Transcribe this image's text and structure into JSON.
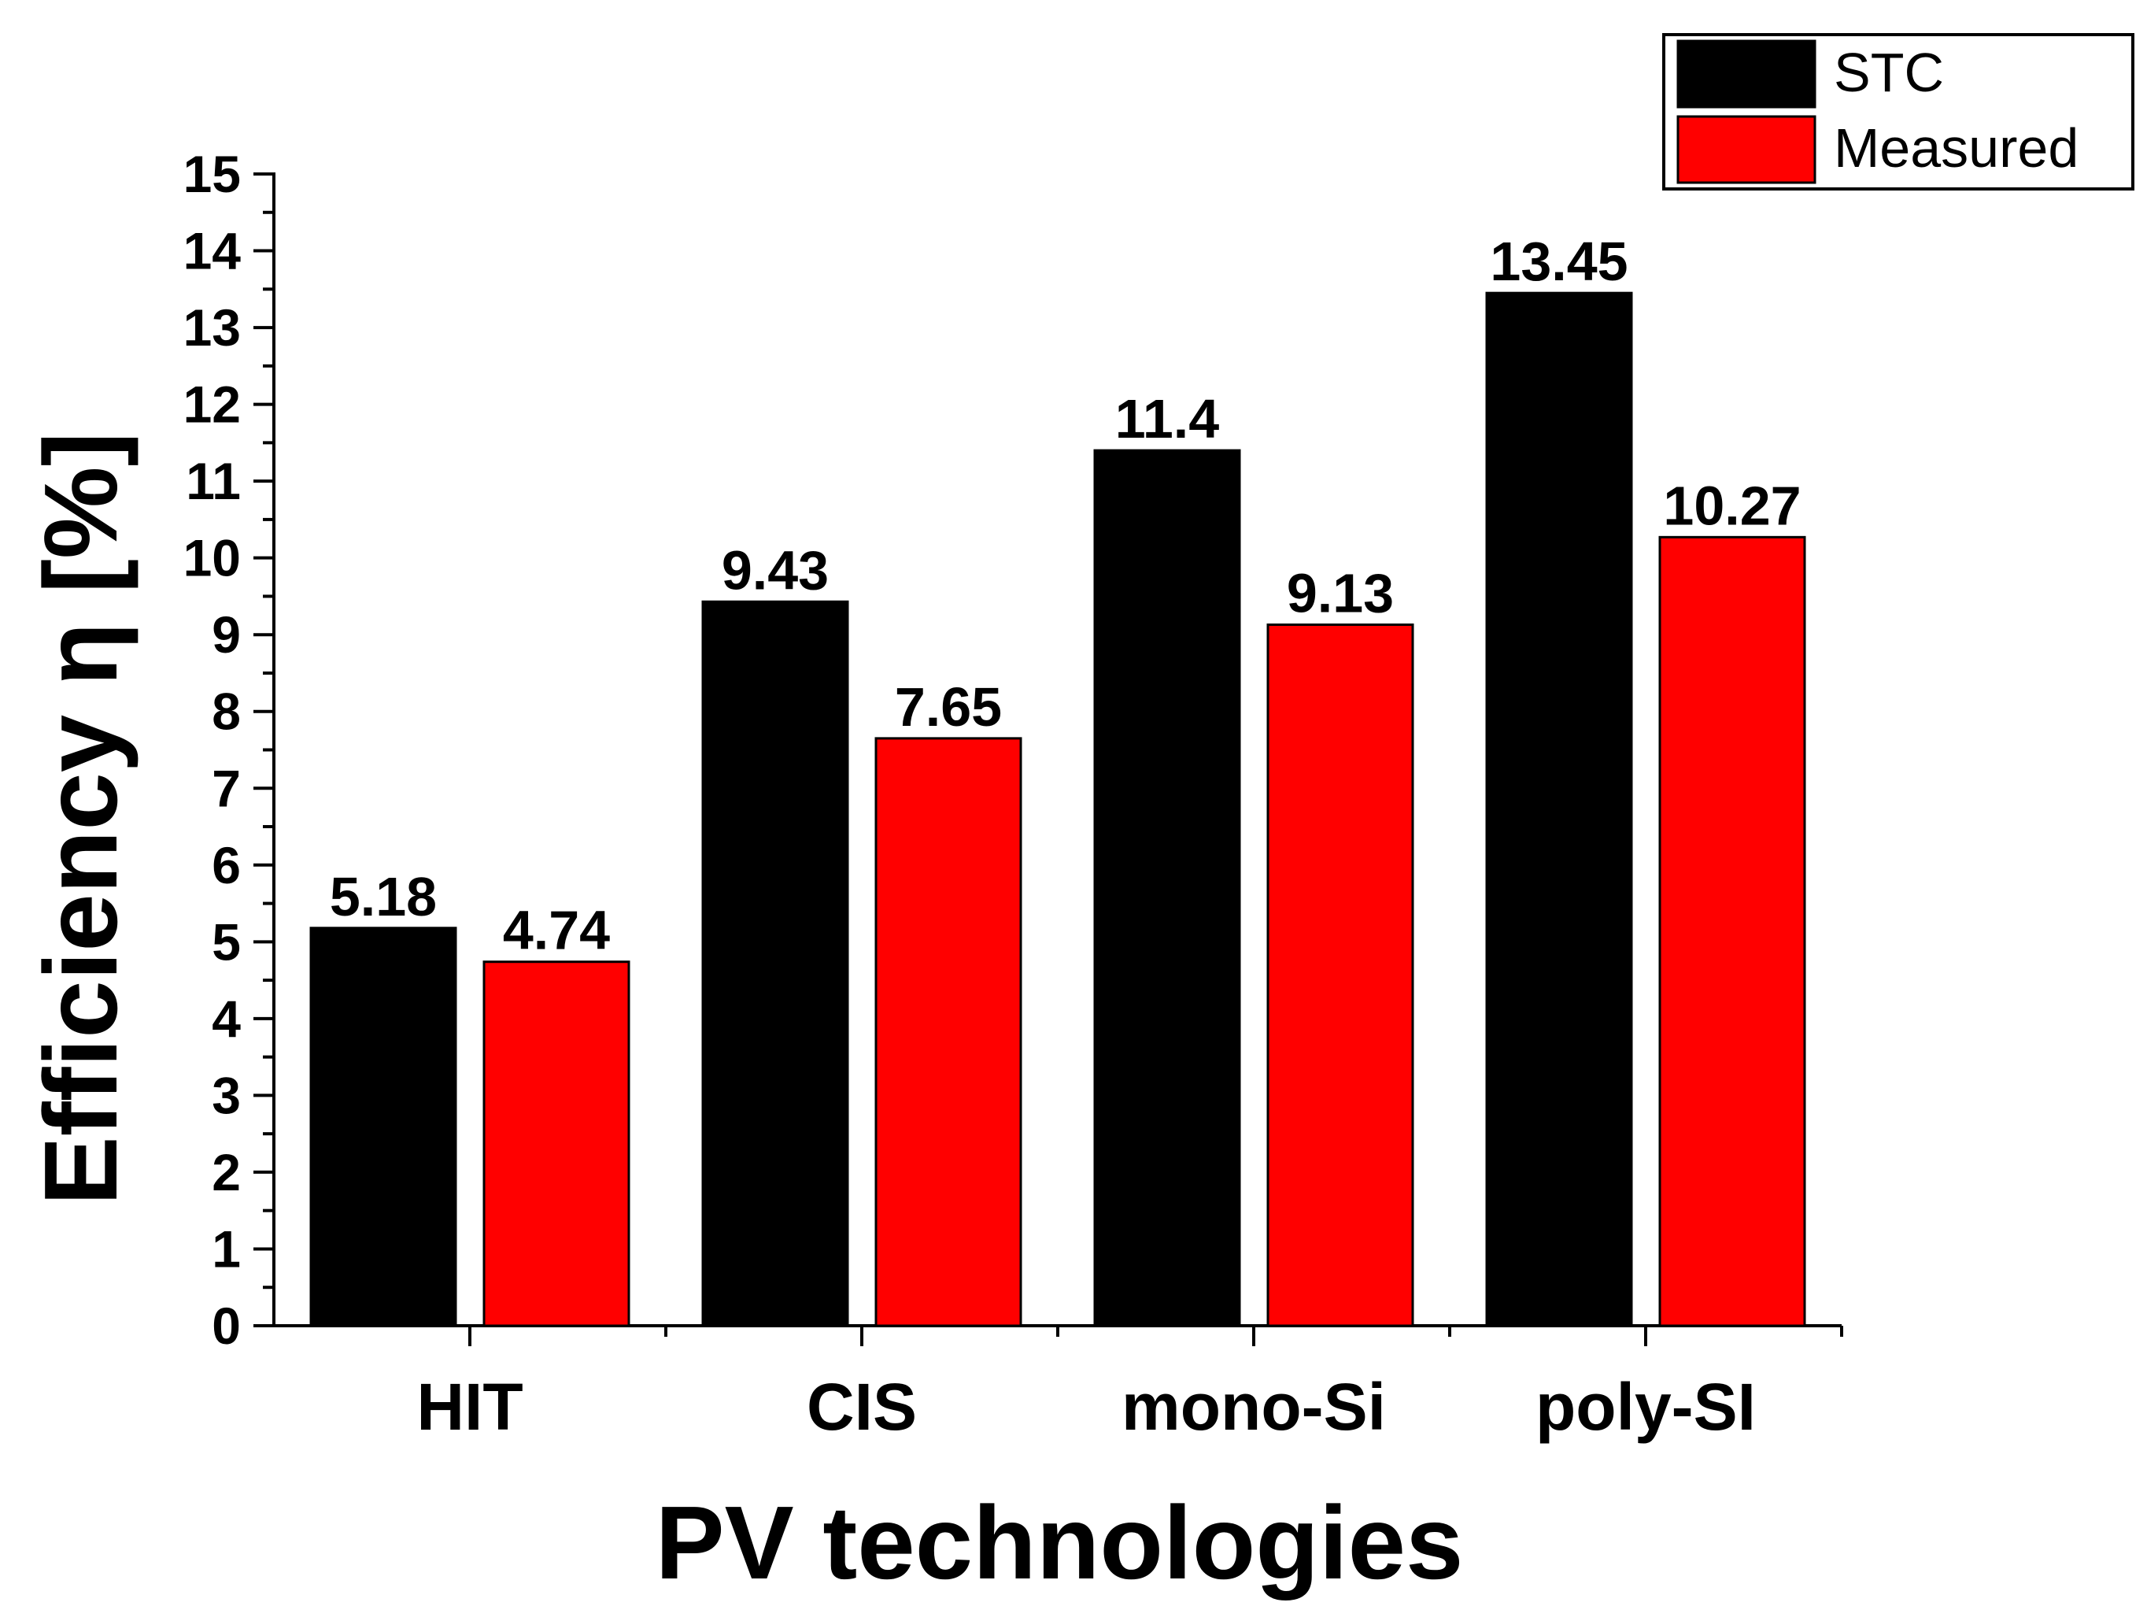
{
  "chart_data": {
    "type": "bar",
    "title": "",
    "xlabel": "PV technologies",
    "ylabel": "Efficiency η [%]",
    "ylim": [
      0,
      15
    ],
    "y_ticks": [
      "0",
      "1",
      "2",
      "3",
      "4",
      "5",
      "6",
      "7",
      "8",
      "9",
      "10",
      "11",
      "12",
      "13",
      "14",
      "15"
    ],
    "categories": [
      "HIT",
      "CIS",
      "mono-Si",
      "poly-SI"
    ],
    "series": [
      {
        "name": "STC",
        "color": "#000000",
        "values": [
          5.18,
          9.43,
          11.4,
          13.45
        ],
        "labels": [
          "5.18",
          "9.43",
          "11.4",
          "13.45"
        ]
      },
      {
        "name": "Measured",
        "color": "#ff0000",
        "values": [
          4.74,
          7.65,
          9.13,
          10.27
        ],
        "labels": [
          "4.74",
          "7.65",
          "9.13",
          "10.27"
        ]
      }
    ],
    "legend": {
      "position": "top-right",
      "entries": [
        "STC",
        "Measured"
      ]
    },
    "grid": false
  }
}
